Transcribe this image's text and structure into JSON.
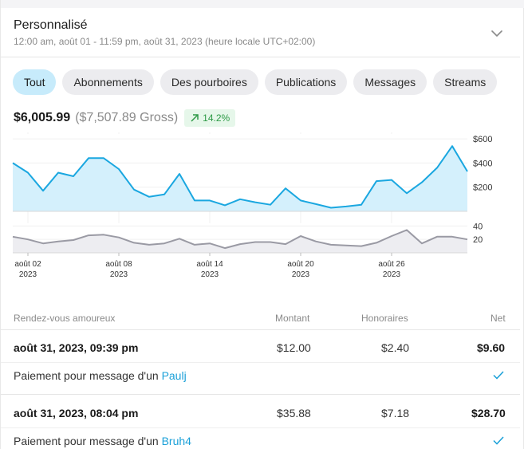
{
  "header": {
    "title": "Personnalisé",
    "subtitle": "12:00 am, août 01 - 11:59 pm, août 31, 2023 (heure locale UTC+02:00)"
  },
  "tabs": [
    {
      "label": "Tout",
      "active": true
    },
    {
      "label": "Abonnements",
      "active": false
    },
    {
      "label": "Des pourboires",
      "active": false
    },
    {
      "label": "Publications",
      "active": false
    },
    {
      "label": "Messages",
      "active": false
    },
    {
      "label": "Streams",
      "active": false
    }
  ],
  "totals": {
    "net": "$6,005.99",
    "gross": "($7,507.89 Gross)",
    "change": "14.2%"
  },
  "colors": {
    "earnings_line": "#1aa7e0",
    "earnings_fill": "#d4f0fc",
    "count_line": "#9a9aa4",
    "count_fill": "#ededf1",
    "positive": "#2d9a46",
    "link": "#1aa0d8"
  },
  "chart_data": [
    {
      "type": "area",
      "name": "earnings",
      "x": [
        "août 01",
        "août 02",
        "août 03",
        "août 04",
        "août 05",
        "août 06",
        "août 07",
        "août 08",
        "août 09",
        "août 10",
        "août 11",
        "août 12",
        "août 13",
        "août 14",
        "août 15",
        "août 16",
        "août 17",
        "août 18",
        "août 19",
        "août 20",
        "août 21",
        "août 22",
        "août 23",
        "août 24",
        "août 25",
        "août 26",
        "août 27",
        "août 28",
        "août 29",
        "août 30",
        "août 31"
      ],
      "values": [
        400,
        320,
        170,
        320,
        290,
        440,
        440,
        350,
        180,
        120,
        140,
        310,
        90,
        90,
        50,
        100,
        75,
        55,
        190,
        90,
        60,
        30,
        40,
        55,
        250,
        260,
        150,
        240,
        360,
        540,
        330
      ],
      "ylim": [
        0,
        640
      ],
      "yticks": [
        "$600",
        "$400",
        "$200"
      ],
      "ytick_values": [
        600,
        400,
        200
      ],
      "grid": true
    },
    {
      "type": "area",
      "name": "count",
      "x": [
        "août 01",
        "août 02",
        "août 03",
        "août 04",
        "août 05",
        "août 06",
        "août 07",
        "août 08",
        "août 09",
        "août 10",
        "août 11",
        "août 12",
        "août 13",
        "août 14",
        "août 15",
        "août 16",
        "août 17",
        "août 18",
        "août 19",
        "août 20",
        "août 21",
        "août 22",
        "août 23",
        "août 24",
        "août 25",
        "août 26",
        "août 27",
        "août 28",
        "août 29",
        "août 30",
        "août 31"
      ],
      "values": [
        24,
        20,
        14,
        17,
        19,
        26,
        27,
        23,
        15,
        12,
        14,
        21,
        12,
        14,
        7,
        13,
        16,
        16,
        13,
        25,
        17,
        12,
        11,
        10,
        15,
        25,
        34,
        14,
        24,
        24,
        20
      ],
      "ylim": [
        0,
        44
      ],
      "yticks": [
        "40",
        "20"
      ],
      "ytick_values": [
        40,
        20
      ],
      "xticks": [
        {
          "day": "août 02",
          "year": "2023",
          "index": 1
        },
        {
          "day": "août 08",
          "year": "2023",
          "index": 7
        },
        {
          "day": "août 14",
          "year": "2023",
          "index": 13
        },
        {
          "day": "août 20",
          "year": "2023",
          "index": 19
        },
        {
          "day": "août 26",
          "year": "2023",
          "index": 25
        }
      ]
    }
  ],
  "table": {
    "headers": {
      "date": "Rendez-vous amoureux",
      "amount": "Montant",
      "fee": "Honoraires",
      "net": "Net"
    },
    "rows": [
      {
        "date": "août 31, 2023, 09:39 pm",
        "amount": "$12.00",
        "fee": "$2.40",
        "net": "$9.60",
        "desc_prefix": "Paiement pour message d'un ",
        "user": "Paulj"
      },
      {
        "date": "août 31, 2023, 08:04 pm",
        "amount": "$35.88",
        "fee": "$7.18",
        "net": "$28.70",
        "desc_prefix": "Paiement pour message d'un ",
        "user": "Bruh4"
      }
    ]
  }
}
